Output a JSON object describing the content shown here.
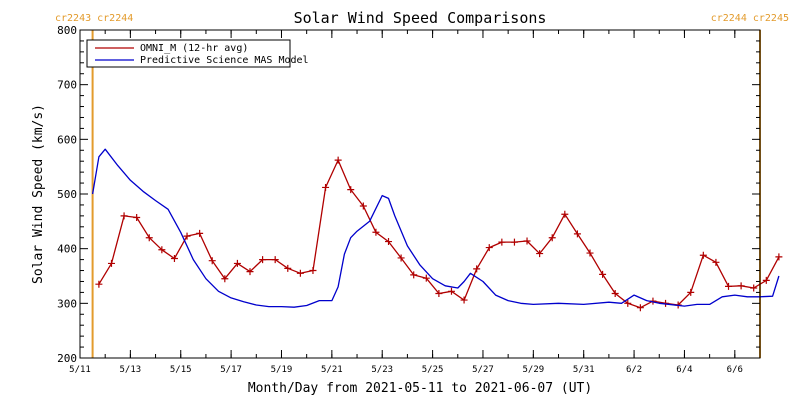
{
  "chart_data": {
    "type": "line",
    "title": "Solar Wind Speed Comparisons",
    "xlabel": "Month/Day from 2021-05-11 to 2021-06-07 (UT)",
    "ylabel": "Solar Wind Speed (km/s)",
    "xlim": [
      "2021-05-11",
      "2021-06-07"
    ],
    "ylim": [
      200,
      800
    ],
    "yticks": [
      200,
      300,
      400,
      500,
      600,
      700,
      800
    ],
    "xticks": [
      "2021-05-11",
      "2021-05-13",
      "2021-05-15",
      "2021-05-17",
      "2021-05-19",
      "2021-05-21",
      "2021-05-23",
      "2021-05-25",
      "2021-05-27",
      "2021-05-29",
      "2021-05-31",
      "2021-06-02",
      "2021-06-04",
      "2021-06-06"
    ],
    "xtick_labels": [
      "5/11",
      "5/13",
      "5/15",
      "5/17",
      "5/19",
      "5/21",
      "5/23",
      "5/25",
      "5/27",
      "5/29",
      "5/31",
      "6/2",
      "6/4",
      "6/6"
    ],
    "grid": false,
    "legend_position": "top-left",
    "carrington_labels": {
      "left": "cr2243 cr2244",
      "right": "cr2244 cr2245",
      "color": "#e39b2c",
      "boundaries": [
        "2021-05-11 12:00",
        "2021-06-07 00:00"
      ]
    },
    "series": [
      {
        "name": "OMNI_M (12-hr avg)",
        "color": "#b00000",
        "marker": "+",
        "x": [
          "2021-05-11 18:00",
          "2021-05-12 06:00",
          "2021-05-12 18:00",
          "2021-05-13 06:00",
          "2021-05-13 18:00",
          "2021-05-14 06:00",
          "2021-05-14 18:00",
          "2021-05-15 06:00",
          "2021-05-15 18:00",
          "2021-05-16 06:00",
          "2021-05-16 18:00",
          "2021-05-17 06:00",
          "2021-05-17 18:00",
          "2021-05-18 06:00",
          "2021-05-18 18:00",
          "2021-05-19 06:00",
          "2021-05-19 18:00",
          "2021-05-20 06:00",
          "2021-05-20 18:00",
          "2021-05-21 06:00",
          "2021-05-21 18:00",
          "2021-05-22 06:00",
          "2021-05-22 18:00",
          "2021-05-23 06:00",
          "2021-05-23 18:00",
          "2021-05-24 06:00",
          "2021-05-24 18:00",
          "2021-05-25 06:00",
          "2021-05-25 18:00",
          "2021-05-26 06:00",
          "2021-05-26 18:00",
          "2021-05-27 06:00",
          "2021-05-27 18:00",
          "2021-05-28 06:00",
          "2021-05-28 18:00",
          "2021-05-29 06:00",
          "2021-05-29 18:00",
          "2021-05-30 06:00",
          "2021-05-30 18:00",
          "2021-05-31 06:00",
          "2021-05-31 18:00",
          "2021-06-01 06:00",
          "2021-06-01 18:00",
          "2021-06-02 06:00",
          "2021-06-02 18:00",
          "2021-06-03 06:00",
          "2021-06-03 18:00",
          "2021-06-04 06:00",
          "2021-06-04 18:00",
          "2021-06-05 06:00",
          "2021-06-05 18:00",
          "2021-06-06 06:00",
          "2021-06-06 18:00",
          "2021-06-07 06:00",
          "2021-06-07 18:00"
        ],
        "values": [
          335,
          373,
          460,
          457,
          420,
          398,
          382,
          423,
          428,
          378,
          345,
          373,
          358,
          380,
          380,
          364,
          355,
          360,
          512,
          562,
          508,
          478,
          430,
          413,
          383,
          352,
          346,
          318,
          322,
          306,
          363,
          402,
          412,
          412,
          414,
          391,
          420,
          463,
          427,
          392,
          353,
          318,
          300,
          292,
          304,
          300,
          297,
          320,
          388,
          375,
          331,
          332,
          328,
          342,
          385
        ]
      },
      {
        "name": "Predictive Science MAS Model",
        "color": "#0000cc",
        "x": [
          "2021-05-11 12:00",
          "2021-05-11 18:00",
          "2021-05-12 00:00",
          "2021-05-12 12:00",
          "2021-05-13 00:00",
          "2021-05-13 12:00",
          "2021-05-14 00:00",
          "2021-05-14 12:00",
          "2021-05-15 00:00",
          "2021-05-15 12:00",
          "2021-05-16 00:00",
          "2021-05-16 12:00",
          "2021-05-17 00:00",
          "2021-05-17 12:00",
          "2021-05-18 00:00",
          "2021-05-18 12:00",
          "2021-05-19 00:00",
          "2021-05-19 12:00",
          "2021-05-20 00:00",
          "2021-05-20 12:00",
          "2021-05-21 00:00",
          "2021-05-21 06:00",
          "2021-05-21 12:00",
          "2021-05-21 18:00",
          "2021-05-22 00:00",
          "2021-05-22 12:00",
          "2021-05-23 00:00",
          "2021-05-23 06:00",
          "2021-05-23 12:00",
          "2021-05-24 00:00",
          "2021-05-24 12:00",
          "2021-05-25 00:00",
          "2021-05-25 12:00",
          "2021-05-26 00:00",
          "2021-05-26 06:00",
          "2021-05-26 12:00",
          "2021-05-27 00:00",
          "2021-05-27 12:00",
          "2021-05-28 00:00",
          "2021-05-28 12:00",
          "2021-05-29 00:00",
          "2021-05-30 00:00",
          "2021-05-31 00:00",
          "2021-06-01 00:00",
          "2021-06-01 12:00",
          "2021-06-02 00:00",
          "2021-06-02 12:00",
          "2021-06-03 00:00",
          "2021-06-04 00:00",
          "2021-06-04 12:00",
          "2021-06-05 00:00",
          "2021-06-05 12:00",
          "2021-06-06 00:00",
          "2021-06-06 12:00",
          "2021-06-07 00:00",
          "2021-06-07 12:00",
          "2021-06-07 18:00"
        ],
        "values": [
          500,
          568,
          582,
          552,
          525,
          505,
          488,
          472,
          430,
          380,
          345,
          322,
          310,
          303,
          297,
          294,
          294,
          293,
          296,
          305,
          305,
          330,
          390,
          420,
          432,
          450,
          497,
          492,
          460,
          405,
          370,
          345,
          332,
          328,
          340,
          355,
          340,
          315,
          305,
          300,
          298,
          300,
          298,
          302,
          300,
          315,
          305,
          300,
          295,
          298,
          298,
          312,
          315,
          312,
          312,
          313,
          350
        ]
      }
    ]
  }
}
